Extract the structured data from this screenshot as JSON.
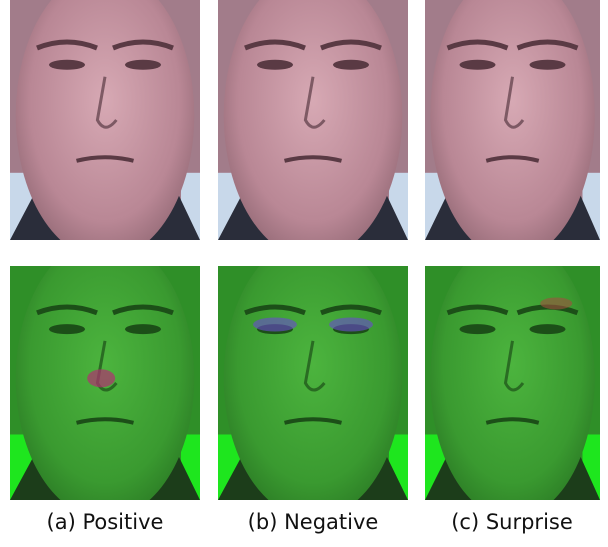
{
  "captions": [
    "(a) Positive",
    "(b) Negative",
    "(c) Surprise"
  ]
}
